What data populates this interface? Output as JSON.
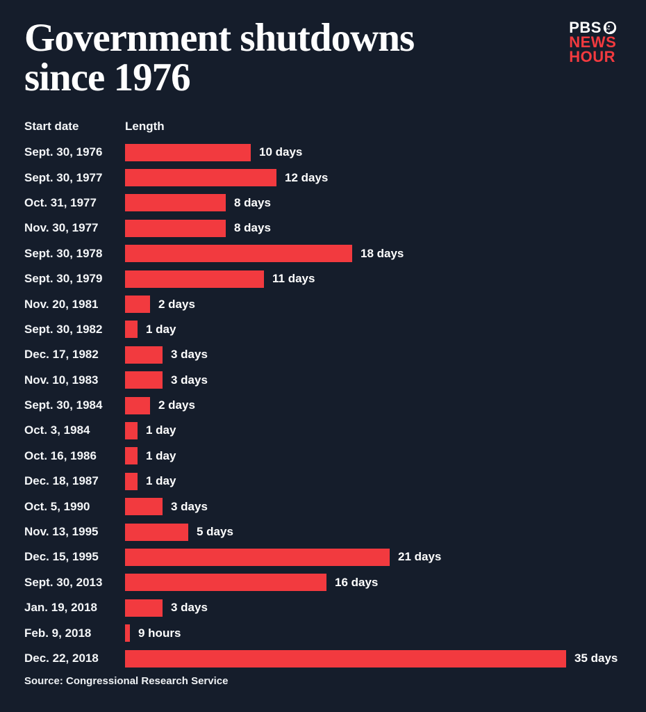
{
  "header": {
    "title_line1": "Government shutdowns",
    "title_line2": "since 1976",
    "logo": {
      "line1": "PBS",
      "line2": "NEWS",
      "line3": "HOUR"
    }
  },
  "columns": {
    "start_date": "Start date",
    "length": "Length"
  },
  "footer": {
    "source": "Source: Congressional Research Service"
  },
  "colors": {
    "background": "#151d2b",
    "bar_red": "#f23a3f",
    "text_white": "#ffffff"
  },
  "chart_data": {
    "type": "bar",
    "orientation": "horizontal",
    "title": "Government shutdowns since 1976",
    "xlabel": "Length",
    "ylabel": "Start date",
    "xlim": [
      0,
      35
    ],
    "grid": false,
    "legend": false,
    "max_days": 35,
    "rows": [
      {
        "date": "Sept. 30, 1976",
        "days": 10,
        "label": "10 days"
      },
      {
        "date": "Sept. 30, 1977",
        "days": 12,
        "label": "12 days"
      },
      {
        "date": "Oct. 31, 1977",
        "days": 8,
        "label": "8 days"
      },
      {
        "date": "Nov. 30, 1977",
        "days": 8,
        "label": "8 days"
      },
      {
        "date": "Sept. 30, 1978",
        "days": 18,
        "label": "18 days"
      },
      {
        "date": "Sept. 30, 1979",
        "days": 11,
        "label": "11 days"
      },
      {
        "date": "Nov. 20, 1981",
        "days": 2,
        "label": "2 days"
      },
      {
        "date": "Sept. 30, 1982",
        "days": 1,
        "label": "1 day"
      },
      {
        "date": "Dec. 17, 1982",
        "days": 3,
        "label": "3 days"
      },
      {
        "date": "Nov. 10, 1983",
        "days": 3,
        "label": "3 days"
      },
      {
        "date": "Sept. 30, 1984",
        "days": 2,
        "label": "2 days"
      },
      {
        "date": "Oct. 3, 1984",
        "days": 1,
        "label": "1 day"
      },
      {
        "date": "Oct. 16, 1986",
        "days": 1,
        "label": "1 day"
      },
      {
        "date": "Dec. 18, 1987",
        "days": 1,
        "label": "1 day"
      },
      {
        "date": "Oct. 5, 1990",
        "days": 3,
        "label": "3 days"
      },
      {
        "date": "Nov. 13, 1995",
        "days": 5,
        "label": "5 days"
      },
      {
        "date": "Dec. 15, 1995",
        "days": 21,
        "label": "21 days"
      },
      {
        "date": "Sept. 30, 2013",
        "days": 16,
        "label": "16 days"
      },
      {
        "date": "Jan. 19, 2018",
        "days": 3,
        "label": "3 days"
      },
      {
        "date": "Feb. 9, 2018",
        "days": 0.375,
        "label": "9 hours"
      },
      {
        "date": "Dec. 22, 2018",
        "days": 35,
        "label": "35 days"
      }
    ]
  }
}
